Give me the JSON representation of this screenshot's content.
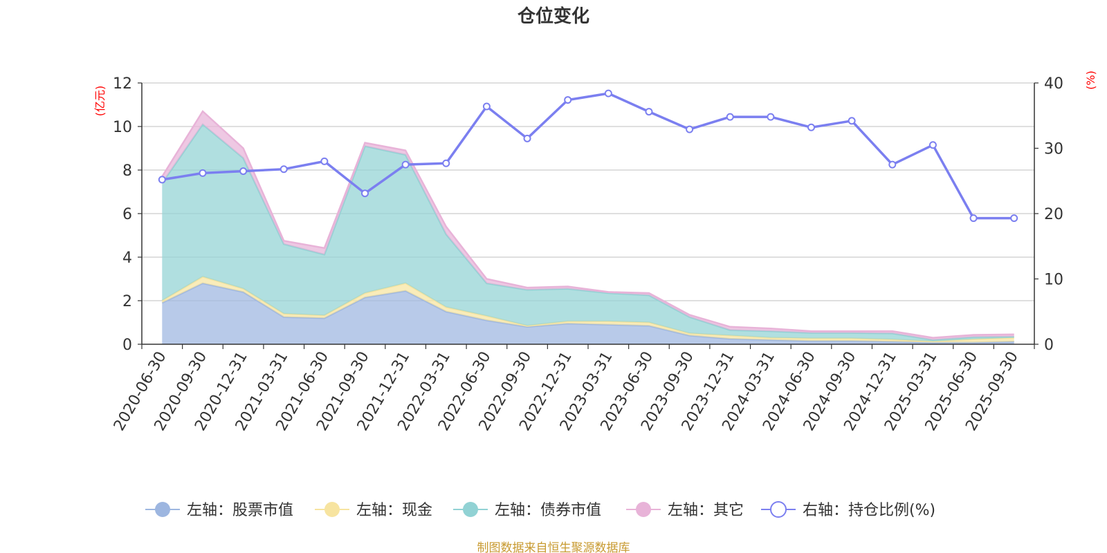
{
  "chart_data": {
    "type": "area",
    "title": "仓位变化",
    "left_axis_unit": "(亿元)",
    "right_axis_unit": "(%)",
    "ylim_left": [
      0,
      12
    ],
    "yticks_left": [
      "0",
      "2",
      "4",
      "6",
      "8",
      "10",
      "12"
    ],
    "ylim_right": [
      0,
      40
    ],
    "yticks_right": [
      "0",
      "10",
      "20",
      "30",
      "40"
    ],
    "categories": [
      "2020-06-30",
      "2020-09-30",
      "2020-12-31",
      "2021-03-31",
      "2021-06-30",
      "2021-09-30",
      "2021-12-31",
      "2022-03-31",
      "2022-06-30",
      "2022-09-30",
      "2022-12-31",
      "2023-03-31",
      "2023-06-30",
      "2023-09-30",
      "2023-12-31",
      "2024-03-31",
      "2024-06-30",
      "2024-09-30",
      "2024-12-31",
      "2025-03-31",
      "2025-06-30",
      "2025-09-30"
    ],
    "series": [
      {
        "name": "左轴：股票市值",
        "axis": "left",
        "stack": true,
        "color": "#9db6e0",
        "values": [
          1.9,
          2.8,
          2.4,
          1.25,
          1.2,
          2.15,
          2.45,
          1.5,
          1.1,
          0.8,
          0.95,
          0.9,
          0.85,
          0.4,
          0.25,
          0.2,
          0.15,
          0.15,
          0.12,
          0.08,
          0.08,
          0.12
        ]
      },
      {
        "name": "左轴：现金",
        "axis": "left",
        "stack": true,
        "color": "#f7e4a0",
        "values": [
          0.1,
          0.3,
          0.15,
          0.15,
          0.12,
          0.2,
          0.35,
          0.2,
          0.2,
          0.05,
          0.1,
          0.15,
          0.15,
          0.1,
          0.15,
          0.1,
          0.12,
          0.12,
          0.1,
          0.05,
          0.15,
          0.18
        ]
      },
      {
        "name": "左轴：债券市值",
        "axis": "left",
        "stack": true,
        "color": "#91d2d4",
        "values": [
          5.4,
          7.0,
          6.0,
          3.2,
          2.8,
          6.75,
          5.9,
          3.35,
          1.5,
          1.65,
          1.5,
          1.3,
          1.25,
          0.75,
          0.25,
          0.3,
          0.25,
          0.25,
          0.28,
          0.07,
          0.1,
          0.05
        ]
      },
      {
        "name": "左轴：其它",
        "axis": "left",
        "stack": true,
        "color": "#e8b3d8",
        "values": [
          0.3,
          0.6,
          0.45,
          0.15,
          0.3,
          0.15,
          0.2,
          0.35,
          0.2,
          0.1,
          0.1,
          0.05,
          0.1,
          0.1,
          0.15,
          0.12,
          0.08,
          0.08,
          0.1,
          0.1,
          0.1,
          0.1
        ]
      },
      {
        "name": "右轴：持仓比例(%)",
        "axis": "right",
        "type": "line",
        "color": "#7b7ff0",
        "values": [
          25.2,
          26.2,
          26.5,
          26.8,
          28.0,
          23.1,
          27.5,
          27.7,
          36.4,
          31.5,
          37.4,
          38.4,
          35.6,
          32.9,
          34.8,
          34.8,
          33.2,
          34.2,
          27.5,
          30.5,
          19.3,
          19.3
        ]
      }
    ]
  },
  "footer": {
    "source_text": "制图数据来自恒生聚源数据库",
    "source_color": "#c89a30"
  },
  "colors": {
    "axis_unit": "#ff0000",
    "grid": "#cccccc",
    "axis": "#333333"
  }
}
